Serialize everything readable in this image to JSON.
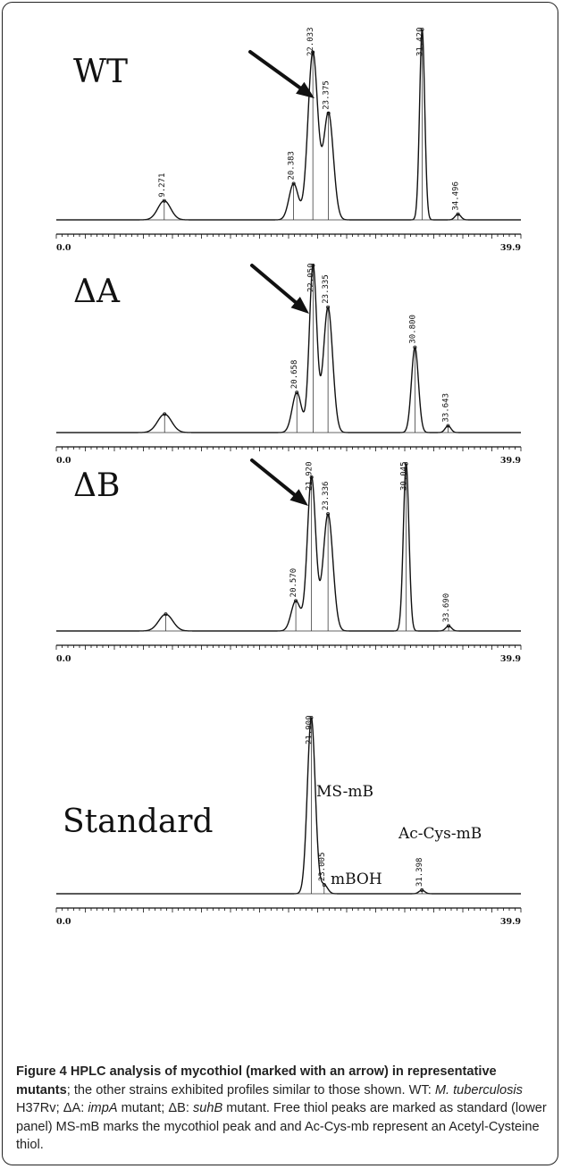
{
  "chart_data": [
    {
      "type": "line",
      "panel_label": "WT",
      "x_start_label": "0.0",
      "x_end_label": "39.9",
      "xlim": [
        0.0,
        39.9
      ],
      "ylim": [
        0,
        100
      ],
      "peaks": [
        {
          "rt": 9.271,
          "height": 10,
          "width": 0.55,
          "label": "9.271"
        },
        {
          "rt": 20.383,
          "height": 19,
          "width": 0.4,
          "label": "20.383"
        },
        {
          "rt": 22.033,
          "height": 88,
          "width": 0.42,
          "label": "22.033"
        },
        {
          "rt": 23.375,
          "height": 56,
          "width": 0.42,
          "label": "23.375"
        },
        {
          "rt": 31.42,
          "height": 100,
          "width": 0.22,
          "label": "31.420"
        },
        {
          "rt": 34.496,
          "height": 3,
          "width": 0.25,
          "label": "34.496"
        }
      ],
      "arrow_target_rt": 22.033
    },
    {
      "type": "line",
      "panel_label": "ΔA",
      "x_start_label": "0.0",
      "x_end_label": "39.9",
      "xlim": [
        0.0,
        39.9
      ],
      "ylim": [
        0,
        100
      ],
      "peaks": [
        {
          "rt": 9.3,
          "height": 11,
          "width": 0.6,
          "label": ""
        },
        {
          "rt": 20.658,
          "height": 24,
          "width": 0.4,
          "label": "20.658"
        },
        {
          "rt": 22.05,
          "height": 100,
          "width": 0.32,
          "label": "22.050"
        },
        {
          "rt": 23.335,
          "height": 75,
          "width": 0.4,
          "label": "23.335"
        },
        {
          "rt": 30.8,
          "height": 51,
          "width": 0.3,
          "label": "30.800"
        },
        {
          "rt": 33.643,
          "height": 4,
          "width": 0.25,
          "label": "33.643"
        }
      ],
      "arrow_target_rt": 22.05
    },
    {
      "type": "line",
      "panel_label": "ΔB",
      "x_start_label": "0.0",
      "x_end_label": "39.9",
      "xlim": [
        0.0,
        39.9
      ],
      "ylim": [
        0,
        100
      ],
      "peaks": [
        {
          "rt": 9.4,
          "height": 10,
          "width": 0.6,
          "label": ""
        },
        {
          "rt": 20.57,
          "height": 18,
          "width": 0.4,
          "label": "20.570"
        },
        {
          "rt": 21.92,
          "height": 92,
          "width": 0.36,
          "label": "21.920"
        },
        {
          "rt": 23.336,
          "height": 70,
          "width": 0.42,
          "label": "23.336"
        },
        {
          "rt": 30.045,
          "height": 100,
          "width": 0.24,
          "label": "30.045"
        },
        {
          "rt": 33.69,
          "height": 3,
          "width": 0.25,
          "label": "33.690"
        }
      ],
      "arrow_target_rt": 21.92
    },
    {
      "type": "line",
      "panel_label": "Standard",
      "x_start_label": "0.0",
      "x_end_label": "39.9",
      "xlim": [
        0.0,
        39.9
      ],
      "ylim": [
        0,
        100
      ],
      "peaks": [
        {
          "rt": 21.9,
          "height": 100,
          "width": 0.34,
          "label": "21.900"
        },
        {
          "rt": 23.005,
          "height": 5,
          "width": 0.3,
          "label": "23.005"
        },
        {
          "rt": 31.398,
          "height": 2,
          "width": 0.25,
          "label": "31.398"
        }
      ],
      "peak_names": [
        {
          "rt": 21.9,
          "name": "MS-mB"
        },
        {
          "rt": 23.005,
          "name": "mBOH"
        },
        {
          "rt": 31.398,
          "name": "Ac-Cys-mB"
        }
      ]
    }
  ],
  "caption": {
    "bold": "Figure 4 HPLC analysis of mycothiol (marked with an arrow) in representative mutants",
    "part1": "; the other strains exhibited profiles similar to those shown. WT: ",
    "italic1": "M. tuberculosis",
    "part2": " H37Rv; ΔA: ",
    "italic2": "impA",
    "part3": " mutant; ΔB: ",
    "italic3": "suhB",
    "part4": " mutant. Free thiol peaks are marked as standard (lower panel) MS-mB marks the mycothiol peak and and Ac-Cys-mb represent an Acetyl-Cysteine thiol."
  }
}
